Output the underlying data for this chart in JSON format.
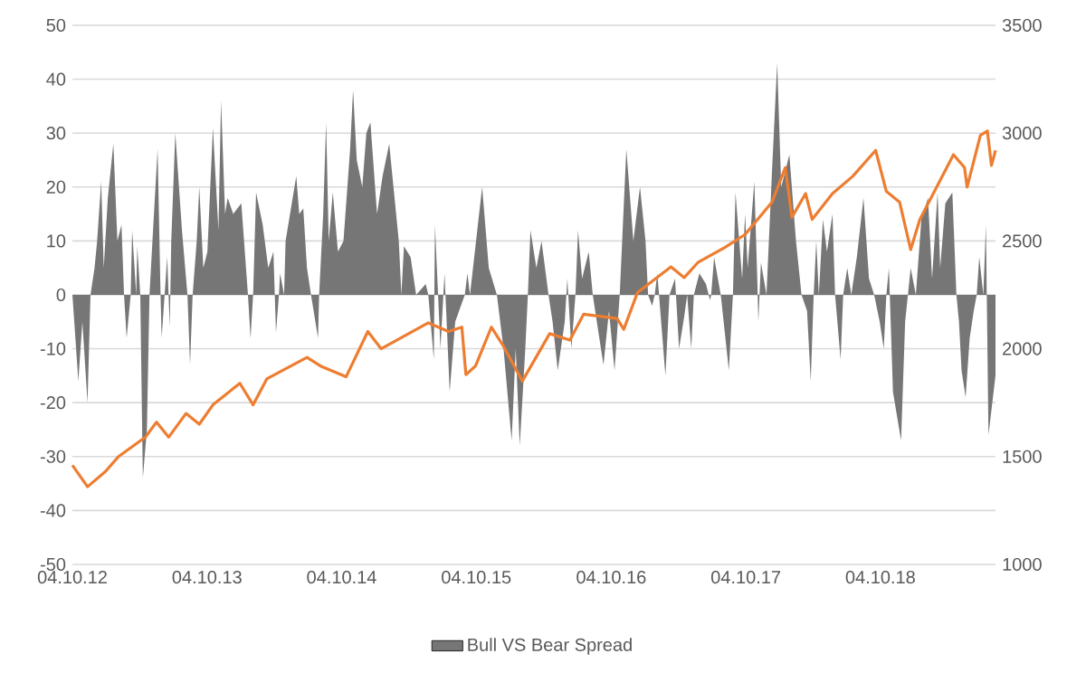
{
  "chart_data": {
    "type": "area",
    "xlim": [
      "2012-10-04",
      "2019-08-12"
    ],
    "xticks": [
      {
        "value": "2012-10-04",
        "label": "04.10.12"
      },
      {
        "value": "2013-10-04",
        "label": "04.10.13"
      },
      {
        "value": "2014-10-04",
        "label": "04.10.14"
      },
      {
        "value": "2015-10-04",
        "label": "04.10.15"
      },
      {
        "value": "2016-10-04",
        "label": "04.10.16"
      },
      {
        "value": "2017-10-04",
        "label": "04.10.17"
      },
      {
        "value": "2018-10-04",
        "label": "04.10.18"
      }
    ],
    "ylim": [
      -50,
      50
    ],
    "yticks": [
      -50,
      -40,
      -30,
      -20,
      -10,
      0,
      10,
      20,
      30,
      40,
      50
    ],
    "y2lim": [
      1000,
      3500
    ],
    "y2ticks": [
      1000,
      1500,
      2000,
      2500,
      3000,
      3500
    ],
    "grid": "y",
    "legend": "bottom",
    "series": [
      {
        "name": "Bull VS Bear Spread",
        "color": "#767676",
        "x": [
          "2012-10-04",
          "2012-10-20",
          "2012-10-31",
          "2012-11-14",
          "2012-11-22",
          "2012-12-03",
          "2012-12-10",
          "2012-12-21",
          "2012-12-28",
          "2013-01-08",
          "2013-01-23",
          "2013-02-03",
          "2013-02-14",
          "2013-02-21",
          "2013-02-28",
          "2013-03-11",
          "2013-03-15",
          "2013-03-26",
          "2013-03-29",
          "2013-04-06",
          "2013-04-13",
          "2013-04-24",
          "2013-05-01",
          "2013-05-09",
          "2013-05-23",
          "2013-05-31",
          "2013-06-03",
          "2013-06-11",
          "2013-06-18",
          "2013-06-25",
          "2013-06-29",
          "2013-07-10",
          "2013-07-28",
          "2013-08-12",
          "2013-08-19",
          "2013-08-26",
          "2013-09-06",
          "2013-09-13",
          "2013-09-24",
          "2013-10-05",
          "2013-10-20",
          "2013-10-27",
          "2013-11-04",
          "2013-11-11",
          "2013-11-22",
          "2013-11-29",
          "2013-12-14",
          "2014-01-05",
          "2014-01-23",
          "2014-01-30",
          "2014-02-06",
          "2014-02-14",
          "2014-03-04",
          "2014-03-19",
          "2014-04-02",
          "2014-04-09",
          "2014-04-17",
          "2014-04-20",
          "2014-05-01",
          "2014-05-05",
          "2014-06-03",
          "2014-06-11",
          "2014-06-22",
          "2014-07-02",
          "2014-07-13",
          "2014-08-01",
          "2014-08-04",
          "2014-08-15",
          "2014-08-23",
          "2014-08-30",
          "2014-09-10",
          "2014-09-24",
          "2014-10-09",
          "2014-10-27",
          "2014-11-04",
          "2014-11-14",
          "2014-11-29",
          "2014-12-10",
          "2014-12-21",
          "2015-01-08",
          "2015-01-23",
          "2015-02-10",
          "2015-03-08",
          "2015-03-15",
          "2015-03-22",
          "2015-04-09",
          "2015-04-24",
          "2015-05-20",
          "2015-05-27",
          "2015-06-11",
          "2015-06-14",
          "2015-06-29",
          "2015-07-10",
          "2015-07-24",
          "2015-08-08",
          "2015-09-03",
          "2015-09-10",
          "2015-09-17",
          "2015-10-20",
          "2015-11-07",
          "2015-11-29",
          "2015-12-17",
          "2016-01-08",
          "2016-01-19",
          "2016-01-30",
          "2016-02-14",
          "2016-02-21",
          "2016-02-28",
          "2016-03-15",
          "2016-03-29",
          "2016-04-17",
          "2016-04-28",
          "2016-05-12",
          "2016-05-31",
          "2016-06-07",
          "2016-06-18",
          "2016-06-29",
          "2016-07-06",
          "2016-07-17",
          "2016-08-04",
          "2016-08-15",
          "2016-08-26",
          "2016-09-13",
          "2016-09-28",
          "2016-10-13",
          "2016-10-27",
          "2016-11-14",
          "2016-12-03",
          "2016-12-21",
          "2017-01-05",
          "2017-01-12",
          "2017-01-23",
          "2017-01-30",
          "2017-02-06",
          "2017-02-28",
          "2017-03-11",
          "2017-03-26",
          "2017-04-06",
          "2017-04-20",
          "2017-04-28",
          "2017-05-09",
          "2017-05-16",
          "2017-05-31",
          "2017-06-18",
          "2017-06-29",
          "2017-07-02",
          "2017-07-10",
          "2017-07-28",
          "2017-08-19",
          "2017-08-30",
          "2017-09-06",
          "2017-09-24",
          "2017-10-02",
          "2017-10-09",
          "2017-10-27",
          "2017-11-04",
          "2017-11-07",
          "2017-11-14",
          "2017-11-29",
          "2017-12-14",
          "2017-12-28",
          "2018-01-08",
          "2018-01-30",
          "2018-02-17",
          "2018-03-04",
          "2018-03-19",
          "2018-03-29",
          "2018-04-06",
          "2018-04-13",
          "2018-04-20",
          "2018-05-01",
          "2018-05-12",
          "2018-05-27",
          "2018-06-03",
          "2018-06-18",
          "2018-06-25",
          "2018-07-06",
          "2018-07-17",
          "2018-08-01",
          "2018-08-19",
          "2018-09-03",
          "2018-09-17",
          "2018-10-02",
          "2018-10-13",
          "2018-10-20",
          "2018-10-27",
          "2018-11-07",
          "2018-11-29",
          "2018-12-10",
          "2018-12-25",
          "2019-01-08",
          "2019-01-23",
          "2019-02-10",
          "2019-02-21",
          "2019-03-08",
          "2019-03-15",
          "2019-03-29",
          "2019-04-17",
          "2019-04-28",
          "2019-05-05",
          "2019-05-12",
          "2019-05-23",
          "2019-06-03",
          "2019-06-14",
          "2019-06-22",
          "2019-06-29",
          "2019-07-10",
          "2019-07-17",
          "2019-07-24",
          "2019-08-12"
        ],
        "values": [
          0,
          -16,
          -5,
          -20,
          0,
          5,
          10,
          21,
          5,
          18,
          28,
          10,
          13,
          0,
          -8,
          0,
          12,
          0,
          9,
          0,
          -34,
          -25,
          0,
          10,
          27,
          0,
          -8,
          0,
          7,
          -6,
          10,
          30,
          12,
          0,
          -13,
          0,
          10,
          20,
          5,
          8,
          31,
          22,
          12,
          36,
          15,
          18,
          15,
          17,
          0,
          -8,
          0,
          19,
          13,
          5,
          8,
          -7,
          0,
          4,
          0,
          10,
          22,
          15,
          16,
          5,
          0,
          -8,
          0,
          15,
          32,
          10,
          19,
          8,
          10,
          27,
          38,
          25,
          20,
          30,
          32,
          15,
          22,
          28,
          10,
          0,
          9,
          7,
          0,
          2,
          0,
          -12,
          13,
          -10,
          4,
          -18,
          -5,
          0,
          4,
          0,
          20,
          5,
          0,
          -10,
          -27,
          -10,
          -28,
          -10,
          0,
          12,
          5,
          10,
          0,
          -5,
          -14,
          -5,
          3,
          -10,
          0,
          12,
          3,
          8,
          0,
          -5,
          -13,
          -3,
          -14,
          0,
          27,
          10,
          20,
          10,
          0,
          -2,
          0,
          4,
          -15,
          0,
          3,
          -10,
          -4,
          0,
          -10,
          0,
          4,
          2,
          -1,
          0,
          7,
          0,
          -14,
          0,
          19,
          3,
          15,
          5,
          21,
          3,
          -5,
          6,
          0,
          23,
          43,
          20,
          26,
          10,
          0,
          -3,
          -16,
          0,
          10,
          0,
          14,
          8,
          15,
          0,
          -12,
          0,
          5,
          0,
          7,
          18,
          3,
          0,
          -5,
          -10,
          0,
          5,
          -18,
          -27,
          -5,
          5,
          0,
          14,
          18,
          3,
          19,
          5,
          17,
          19,
          0,
          -5,
          -14,
          -19,
          -8,
          -3,
          0,
          7,
          0,
          13,
          -26,
          -15
        ]
      },
      {
        "type": "line",
        "axis": "y2",
        "color": "#ed7d31",
        "x": [
          "2012-10-04",
          "2012-11-14",
          "2013-01-01",
          "2013-02-06",
          "2013-04-20",
          "2013-05-20",
          "2013-06-22",
          "2013-08-08",
          "2013-09-13",
          "2013-10-20",
          "2014-01-01",
          "2014-02-06",
          "2014-03-15",
          "2014-07-02",
          "2014-08-08",
          "2014-10-16",
          "2014-12-14",
          "2015-01-19",
          "2015-05-27",
          "2015-07-21",
          "2015-08-26",
          "2015-09-06",
          "2015-10-02",
          "2015-11-14",
          "2015-12-14",
          "2016-02-06",
          "2016-04-20",
          "2016-06-14",
          "2016-07-21",
          "2016-10-20",
          "2016-11-07",
          "2016-12-14",
          "2017-03-15",
          "2017-04-20",
          "2017-05-27",
          "2017-08-08",
          "2017-10-02",
          "2017-12-14",
          "2018-01-19",
          "2018-02-06",
          "2018-03-15",
          "2018-04-02",
          "2018-05-27",
          "2018-07-21",
          "2018-09-21",
          "2018-10-20",
          "2018-11-25",
          "2018-12-25",
          "2019-01-19",
          "2019-04-20",
          "2019-05-20",
          "2019-05-27",
          "2019-07-02",
          "2019-07-21",
          "2019-08-01",
          "2019-08-12"
        ],
        "values": [
          1460,
          1360,
          1430,
          1500,
          1590,
          1660,
          1590,
          1700,
          1650,
          1740,
          1840,
          1740,
          1860,
          1960,
          1920,
          1870,
          2080,
          2000,
          2120,
          2080,
          2100,
          1880,
          1920,
          2100,
          2020,
          1850,
          2070,
          2040,
          2160,
          2140,
          2090,
          2260,
          2380,
          2330,
          2400,
          2470,
          2530,
          2680,
          2840,
          2610,
          2720,
          2600,
          2720,
          2800,
          2920,
          2730,
          2680,
          2460,
          2600,
          2900,
          2840,
          2750,
          2990,
          3010,
          2850,
          2920
        ]
      }
    ]
  }
}
